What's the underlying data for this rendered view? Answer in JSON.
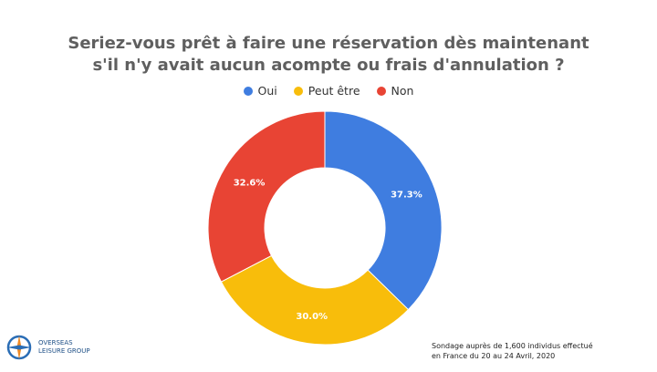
{
  "chart_data": {
    "type": "pie",
    "title": "Seriez-vous prêt à faire une réservation dès maintenant s'il n'y avait aucun acompte ou frais d'annulation ?",
    "title_lines": [
      "Seriez-vous prêt à faire une réservation dès maintenant",
      "s'il n'y avait aucun acompte ou frais d'annulation ?"
    ],
    "donut": true,
    "legend_position": "top",
    "categories": [
      "Oui",
      "Peut être",
      "Non"
    ],
    "values": [
      37.3,
      30.0,
      32.6
    ],
    "data_labels": [
      "37.3%",
      "30.0%",
      "32.6%"
    ],
    "colors": [
      "#3f7de0",
      "#f8bd0b",
      "#e84434"
    ]
  },
  "logo": {
    "line1": "OVERSEAS",
    "line2": "LEISURE GROUP"
  },
  "source": {
    "line1": "Sondage auprès de 1,600 individus effectué",
    "line2": "en France du 20 au 24 Avril, 2020"
  }
}
